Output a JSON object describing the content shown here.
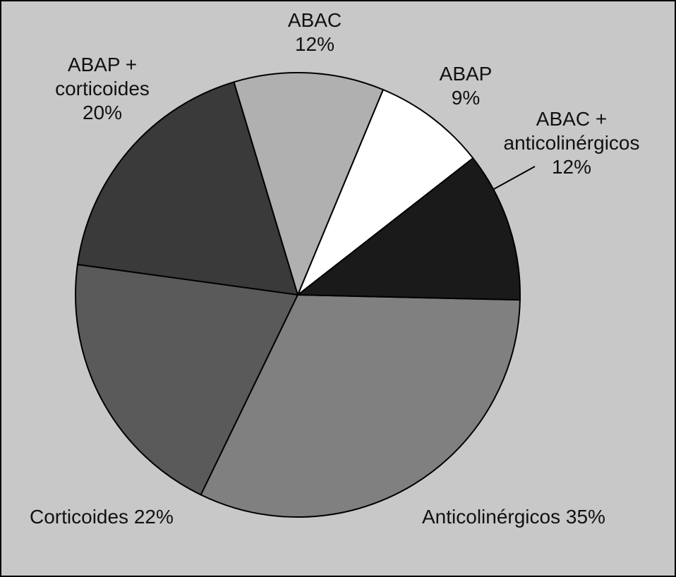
{
  "chart_data": {
    "type": "pie",
    "categories": [
      "ABAC",
      "ABAP",
      "ABAC + anticolinérgicos",
      "Anticolinérgicos",
      "Corticoides",
      "ABAP + corticoides"
    ],
    "values": [
      12,
      9,
      12,
      35,
      22,
      20
    ],
    "value_labels": [
      "12%",
      "9%",
      "12%",
      "35%",
      "22%",
      "20%"
    ],
    "colors": [
      "#b0b0b0",
      "#ffffff",
      "#1a1a1a",
      "#808080",
      "#5a5a5a",
      "#3a3a3a"
    ]
  }
}
